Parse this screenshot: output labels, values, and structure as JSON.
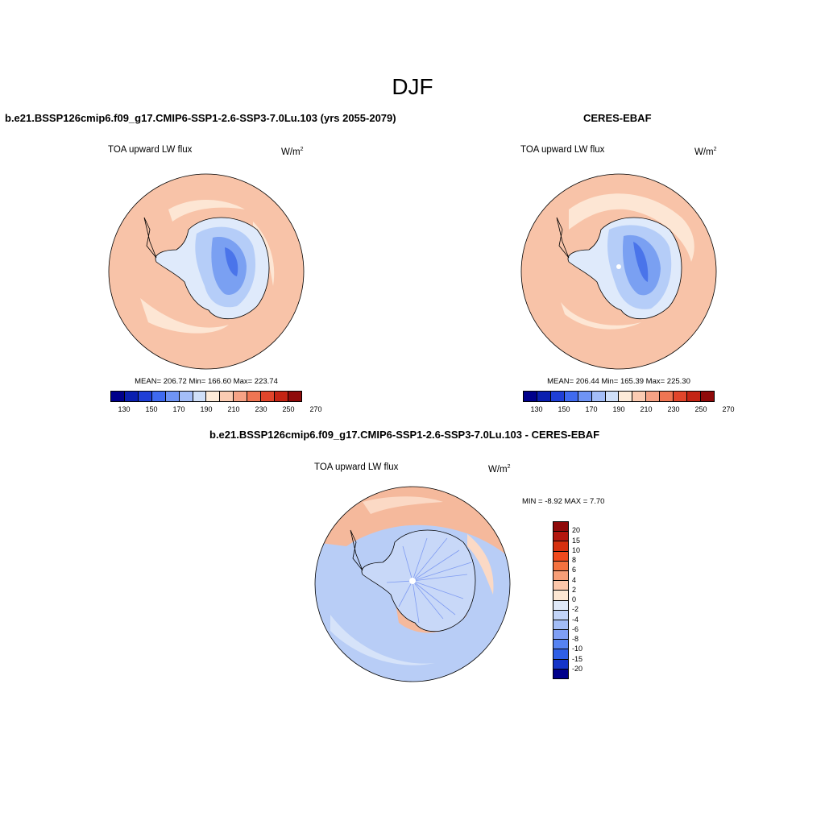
{
  "title": "DJF",
  "panel_model": {
    "title": "b.e21.BSSP126cmip6.f09_g17.CMIP6-SSP1-2.6-SSP3-7.0Lu.103 (yrs 2055-2079)",
    "variable": "TOA upward LW flux",
    "unit_base": "W/m",
    "unit_exp": "2",
    "stats": "MEAN= 206.72  Min= 166.60  Max= 223.74"
  },
  "panel_obs": {
    "title": "CERES-EBAF",
    "variable": "TOA upward LW flux",
    "unit_base": "W/m",
    "unit_exp": "2",
    "stats": "MEAN= 206.44  Min= 165.39  Max= 225.30"
  },
  "panel_diff": {
    "title": "b.e21.BSSP126cmip6.f09_g17.CMIP6-SSP1-2.6-SSP3-7.0Lu.103 - CERES-EBAF",
    "variable": "TOA upward LW flux",
    "unit_base": "W/m",
    "unit_exp": "2",
    "stats": "MIN =  -8.92 MAX =   7.70"
  },
  "colorbar_abs": {
    "colors": [
      "#00008b",
      "#0a1fb0",
      "#1f3fd6",
      "#3f6af0",
      "#6f94f5",
      "#a3bdf7",
      "#cfdff8",
      "#fdebd9",
      "#fbcbb2",
      "#f6a285",
      "#ef7553",
      "#e1452b",
      "#c42414",
      "#8f0a0a"
    ],
    "ticks": [
      "130",
      "150",
      "170",
      "190",
      "210",
      "230",
      "250",
      "270"
    ]
  },
  "colorbar_diff": {
    "colors": [
      "#8f0a0a",
      "#b3170e",
      "#d6300f",
      "#f04a1d",
      "#f4723f",
      "#f79e77",
      "#fbc6aa",
      "#fde7d3",
      "#dfe9f9",
      "#c2d4f8",
      "#a3bdf7",
      "#7f9ff5",
      "#5683f2",
      "#2f5fe6",
      "#1535c8",
      "#00008b"
    ],
    "ticks": [
      "20",
      "15",
      "10",
      "8",
      "6",
      "4",
      "2",
      "0",
      "-2",
      "-4",
      "-6",
      "-8",
      "-10",
      "-15",
      "-20"
    ]
  },
  "map_colors": {
    "ocean_warm": "#f8c3a8",
    "ocean_light": "#fde6d4",
    "ice_light": "#dfeafb",
    "ice_mid": "#b5cdf8",
    "ice_deep": "#7aa0f2",
    "ice_core": "#4a74ea",
    "diff_blue": "#b8cdf6",
    "diff_blue_light": "#d6e3f9",
    "diff_red": "#f5b99c",
    "diff_red_light": "#fbd9c5",
    "diff_streak": "#6f8ef0"
  }
}
